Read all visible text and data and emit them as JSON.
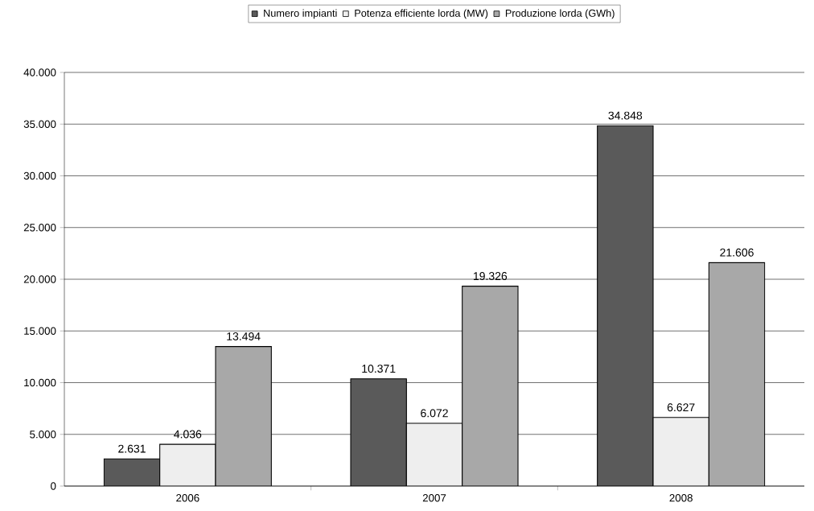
{
  "chart_data": {
    "type": "bar",
    "categories": [
      "2006",
      "2007",
      "2008"
    ],
    "series": [
      {
        "name": "Numero impianti",
        "color": "#5a5a5a",
        "values": [
          2631,
          10371,
          34848
        ],
        "value_labels": [
          "2.631",
          "10.371",
          "34.848"
        ]
      },
      {
        "name": "Potenza efficiente lorda (MW)",
        "color": "#eeeeee",
        "values": [
          4036,
          6072,
          6627
        ],
        "value_labels": [
          "4.036",
          "6.072",
          "6.627"
        ]
      },
      {
        "name": "Produzione lorda (GWh)",
        "color": "#a8a8a8",
        "values": [
          13494,
          19326,
          21606
        ],
        "value_labels": [
          "13.494",
          "19.326",
          "21.606"
        ]
      }
    ],
    "ylim": [
      0,
      40000
    ],
    "yticks": [
      0,
      {
        "value": 5000,
        "label": "5.000"
      },
      {
        "value": 10000,
        "label": "10.000"
      },
      {
        "value": 15000,
        "label": "15.000"
      },
      {
        "value": 20000,
        "label": "20.000"
      },
      {
        "value": 25000,
        "label": "25.000"
      },
      {
        "value": 30000,
        "label": "30.000"
      },
      {
        "value": 35000,
        "label": "35.000"
      },
      {
        "value": 40000,
        "label": "40.000"
      }
    ],
    "grid": "y",
    "legend": "top"
  }
}
